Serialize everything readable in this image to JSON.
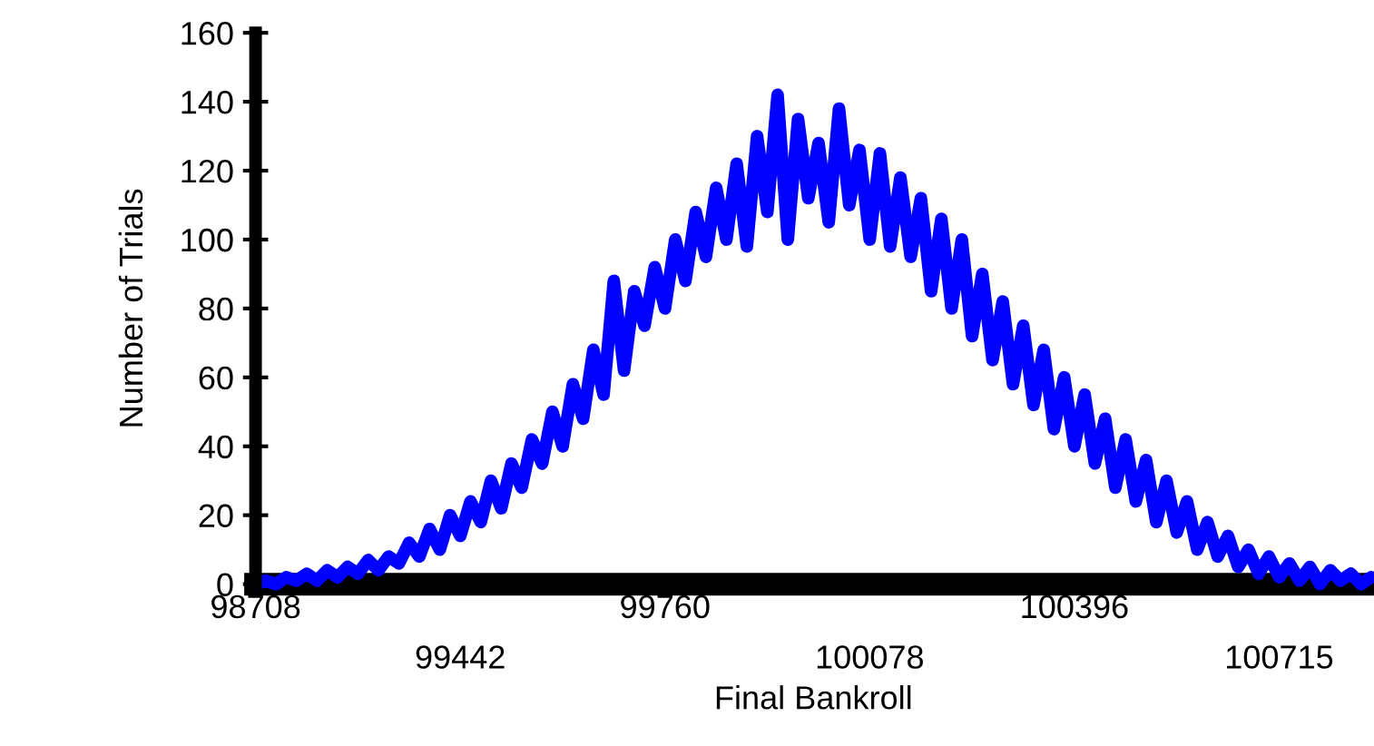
{
  "chart_data": {
    "type": "line",
    "xlabel": "Final Bankroll",
    "ylabel": "Number of Trials",
    "categories": [
      "98708",
      null,
      null,
      null,
      null,
      null,
      null,
      null,
      null,
      null,
      null,
      null,
      null,
      null,
      null,
      null,
      null,
      null,
      null,
      null,
      "99442",
      null,
      null,
      null,
      null,
      null,
      null,
      null,
      null,
      null,
      null,
      null,
      null,
      null,
      null,
      null,
      null,
      null,
      null,
      null,
      "99760",
      null,
      null,
      null,
      null,
      null,
      null,
      null,
      null,
      null,
      null,
      null,
      null,
      null,
      null,
      null,
      null,
      null,
      null,
      null,
      "100078",
      null,
      null,
      null,
      null,
      null,
      null,
      null,
      null,
      null,
      null,
      null,
      null,
      null,
      null,
      null,
      null,
      null,
      null,
      null,
      "100396",
      null,
      null,
      null,
      null,
      null,
      null,
      null,
      null,
      null,
      null,
      null,
      null,
      null,
      null,
      null,
      null,
      null,
      null,
      null,
      "100715",
      null,
      null,
      null,
      null,
      null,
      null,
      null,
      null,
      null
    ],
    "series": [
      {
        "color": "#0000ff",
        "values": [
          0,
          1,
          0,
          2,
          1,
          3,
          1,
          4,
          2,
          5,
          3,
          7,
          4,
          8,
          6,
          12,
          8,
          16,
          10,
          20,
          14,
          24,
          18,
          30,
          22,
          35,
          28,
          42,
          35,
          50,
          40,
          58,
          48,
          68,
          55,
          88,
          62,
          85,
          75,
          92,
          80,
          100,
          88,
          108,
          95,
          115,
          100,
          122,
          98,
          130,
          108,
          142,
          100,
          135,
          112,
          128,
          105,
          138,
          110,
          126,
          100,
          125,
          98,
          118,
          95,
          112,
          85,
          106,
          80,
          100,
          72,
          90,
          65,
          82,
          58,
          75,
          52,
          68,
          45,
          60,
          40,
          55,
          35,
          48,
          28,
          42,
          24,
          36,
          18,
          30,
          15,
          24,
          10,
          18,
          8,
          14,
          5,
          10,
          3,
          8,
          2,
          6,
          1,
          5,
          0,
          4,
          1,
          3,
          0,
          2
        ]
      }
    ],
    "ylim": [
      0,
      160
    ],
    "yticks": [
      0,
      20,
      40,
      60,
      80,
      100,
      120,
      140,
      160
    ],
    "grid": false,
    "legend": false,
    "marker": "none",
    "line_style": "solid"
  }
}
